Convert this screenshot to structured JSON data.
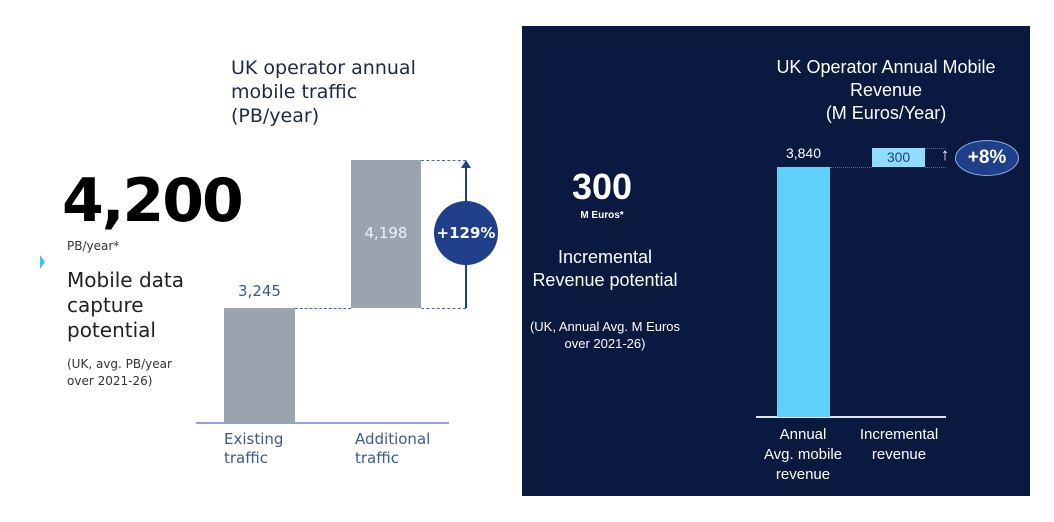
{
  "left": {
    "headline_value": "4,200",
    "headline_unit": "PB/year*",
    "description": "Mobile data capture potential",
    "note_line1": "(UK, avg. PB/year",
    "note_line2": "over 2021-26)"
  },
  "right": {
    "headline_value": "300",
    "headline_unit": "M Euros*",
    "description_line1": "Incremental",
    "description_line2": "Revenue potential",
    "note_line1": "(UK, Annual Avg. M Euros",
    "note_line2": "over 2021-26)"
  },
  "colors": {
    "gray_bar": "#9ba3ae",
    "navy": "#0a1940",
    "cyan_bar": "#5fd0fa",
    "badge": "#1f3f8a"
  },
  "chart_data": [
    {
      "type": "bar",
      "title_lines": [
        "UK operator annual",
        "mobile traffic",
        "(PB/year)"
      ],
      "categories": [
        "Existing traffic",
        "Additional traffic"
      ],
      "category_lines": [
        [
          "Existing",
          "traffic"
        ],
        [
          "Additional",
          "traffic"
        ]
      ],
      "values": [
        3245,
        4198
      ],
      "labels": [
        "3,245",
        "4,198"
      ],
      "stacked_waterfall": true,
      "change_badge": "+129%",
      "ylim": [
        0,
        7443
      ]
    },
    {
      "type": "bar",
      "title_lines": [
        "UK Operator Annual Mobile",
        "Revenue",
        "(M Euros/Year)"
      ],
      "categories": [
        "Annual Avg. mobile revenue",
        "Incremental revenue"
      ],
      "category_lines": [
        [
          "Annual",
          "Avg. mobile",
          "revenue"
        ],
        [
          "Incremental",
          "revenue"
        ]
      ],
      "values": [
        3840,
        300
      ],
      "labels": [
        "3,840",
        "300"
      ],
      "stacked_waterfall": true,
      "change_badge": "+8%",
      "ylim": [
        0,
        4140
      ]
    }
  ]
}
